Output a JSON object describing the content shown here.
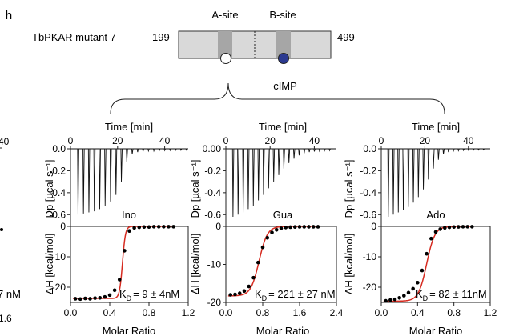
{
  "figure": {
    "panel_letter": "h",
    "construct_name": "TbPKAR mutant 7",
    "range_start": "199",
    "range_end": "499",
    "site_a_label": "A-site",
    "site_b_label": "B-site",
    "ligand_label": "cIMP",
    "colors": {
      "bar_fill": "#d9d9d9",
      "site_band": "#a6a6a6",
      "site_a_circle": "#ffffff",
      "site_b_circle": "#2b3990",
      "fit_line": "#d62b20",
      "points": "#000000"
    }
  },
  "left_edge_clipped": {
    "top_tick": "40",
    "kd_tail": "7 nM",
    "x_tick_tail": "1.6"
  },
  "chart_data": [
    {
      "type": "line",
      "panel": "Ino",
      "top": {
        "xlabel": "Time [min]",
        "ylabel": "Dp [µcal s⁻¹]",
        "xlim": [
          0,
          50
        ],
        "ylim": [
          -0.7,
          0
        ],
        "xticks": [
          "0",
          "20",
          "40"
        ],
        "yticks": [
          "0.0",
          "-0.2",
          "-0.4",
          "-0.6"
        ],
        "y_tick_values": [
          0,
          -0.2,
          -0.4,
          -0.6
        ],
        "injections": {
          "start_min": 3,
          "interval_min": 2.3,
          "count": 21,
          "peaks": [
            -0.6,
            -0.59,
            -0.58,
            -0.57,
            -0.55,
            -0.52,
            -0.48,
            -0.42,
            -0.3,
            -0.12,
            -0.05,
            -0.03,
            -0.025,
            -0.02,
            -0.02,
            -0.018,
            -0.016,
            -0.015,
            -0.014,
            -0.013,
            -0.012
          ]
        }
      },
      "bottom": {
        "label": "Ino",
        "xlabel": "Molar Ratio",
        "ylabel": "ΔH [kcal/mol]",
        "xlim": [
          0,
          1.2
        ],
        "ylim": [
          -25,
          0
        ],
        "xticks": [
          "0.0",
          "0.4",
          "0.8",
          "1.2"
        ],
        "x_tick_values": [
          0,
          0.4,
          0.8,
          1.2
        ],
        "yticks": [
          "0",
          "-10",
          "-20"
        ],
        "y_tick_values": [
          0,
          -10,
          -20
        ],
        "x": [
          0.05,
          0.1,
          0.15,
          0.2,
          0.25,
          0.3,
          0.35,
          0.4,
          0.45,
          0.5,
          0.55,
          0.6,
          0.65,
          0.7,
          0.75,
          0.8,
          0.85,
          0.9,
          0.95,
          1.0,
          1.05
        ],
        "y": [
          -23.8,
          -23.9,
          -23.7,
          -23.8,
          -23.6,
          -23.5,
          -23.2,
          -22.6,
          -21.0,
          -17.5,
          -8.0,
          -1.5,
          -0.5,
          -0.3,
          -0.2,
          -0.2,
          -0.1,
          -0.1,
          -0.1,
          -0.1,
          -0.1
        ],
        "fit": {
          "dh": -23.7,
          "n": 0.53,
          "width": 0.015
        },
        "kd_prefix": "K",
        "kd_subscript": "D",
        "kd_value": "= 9 ± 4nM"
      }
    },
    {
      "type": "line",
      "panel": "Gua",
      "top": {
        "xlabel": "Time [min]",
        "ylabel": "Dp [µcal s⁻¹]",
        "xlim": [
          0,
          50
        ],
        "ylim": [
          -0.7,
          0
        ],
        "xticks": [
          "0",
          "20",
          "40"
        ],
        "yticks": [
          "0.00",
          "-0.2",
          "-0.4",
          "-0.6"
        ],
        "y_tick_values": [
          0,
          -0.2,
          -0.4,
          -0.6
        ],
        "injections": {
          "start_min": 3,
          "interval_min": 2.3,
          "count": 20,
          "peaks": [
            -0.62,
            -0.6,
            -0.58,
            -0.55,
            -0.52,
            -0.47,
            -0.42,
            -0.36,
            -0.3,
            -0.24,
            -0.18,
            -0.13,
            -0.09,
            -0.06,
            -0.04,
            -0.03,
            -0.025,
            -0.02,
            -0.018,
            -0.016
          ]
        }
      },
      "bottom": {
        "label": "Gua",
        "xlabel": "Molar Ratio",
        "ylabel": "ΔH [kcal/mol]",
        "xlim": [
          0,
          2.4
        ],
        "ylim": [
          -20,
          0
        ],
        "xticks": [
          "0.0",
          "0.8",
          "1.6",
          "2.4"
        ],
        "x_tick_values": [
          0,
          0.8,
          1.6,
          2.4
        ],
        "yticks": [
          "0",
          "-10",
          "-20"
        ],
        "y_tick_values": [
          0,
          -10,
          -20
        ],
        "x": [
          0.1,
          0.2,
          0.3,
          0.4,
          0.5,
          0.6,
          0.7,
          0.8,
          0.9,
          1.0,
          1.1,
          1.2,
          1.3,
          1.4,
          1.5,
          1.6,
          1.7,
          1.8,
          1.9,
          2.0
        ],
        "y": [
          -18.0,
          -17.9,
          -17.6,
          -17.0,
          -15.8,
          -13.5,
          -9.5,
          -5.5,
          -3.0,
          -1.6,
          -0.9,
          -0.5,
          -0.3,
          -0.2,
          -0.15,
          -0.1,
          -0.1,
          -0.1,
          -0.1,
          -0.1
        ],
        "fit": {
          "dh": -18.3,
          "n": 0.72,
          "width": 0.09
        },
        "kd_prefix": "K",
        "kd_subscript": "D",
        "kd_value": "= 221 ± 27 nM"
      }
    },
    {
      "type": "line",
      "panel": "Ado",
      "top": {
        "xlabel": "Time [min]",
        "ylabel": "Dp [µcal s⁻¹]",
        "xlim": [
          0,
          50
        ],
        "ylim": [
          -0.7,
          0
        ],
        "xticks": [
          "0",
          "20",
          "40"
        ],
        "yticks": [
          "0.0",
          "-0.2",
          "-0.4",
          "-0.6"
        ],
        "y_tick_values": [
          0,
          -0.2,
          -0.4,
          -0.6
        ],
        "injections": {
          "start_min": 3,
          "interval_min": 2.3,
          "count": 20,
          "peaks": [
            -0.62,
            -0.6,
            -0.58,
            -0.56,
            -0.53,
            -0.49,
            -0.44,
            -0.37,
            -0.28,
            -0.18,
            -0.1,
            -0.05,
            -0.03,
            -0.02,
            -0.018,
            -0.015,
            -0.013,
            -0.012,
            -0.011,
            -0.01
          ]
        }
      },
      "bottom": {
        "label": "Ado",
        "xlabel": "Molar Ratio",
        "ylabel": "ΔH [kcal/mol]",
        "xlim": [
          0,
          1.2
        ],
        "ylim": [
          -25,
          0
        ],
        "xticks": [
          "0.0",
          "0.4",
          "0.8",
          "1.2"
        ],
        "x_tick_values": [
          0,
          0.4,
          0.8,
          1.2
        ],
        "yticks": [
          "0",
          "-10",
          "-20"
        ],
        "y_tick_values": [
          0,
          -10,
          -20
        ],
        "x": [
          0.05,
          0.1,
          0.15,
          0.2,
          0.25,
          0.3,
          0.35,
          0.4,
          0.45,
          0.5,
          0.55,
          0.6,
          0.65,
          0.7,
          0.75,
          0.8,
          0.85,
          0.9,
          0.95,
          1.0
        ],
        "y": [
          -24.5,
          -24.2,
          -24.0,
          -23.5,
          -22.8,
          -21.8,
          -20.5,
          -18.5,
          -14.5,
          -9.0,
          -4.0,
          -1.8,
          -0.9,
          -0.5,
          -0.3,
          -0.2,
          -0.15,
          -0.1,
          -0.1,
          -0.1
        ],
        "fit": {
          "dh": -24.6,
          "n": 0.5,
          "width": 0.045
        },
        "kd_prefix": "K",
        "kd_subscript": "D",
        "kd_value": "= 82 ± 11nM"
      }
    }
  ]
}
